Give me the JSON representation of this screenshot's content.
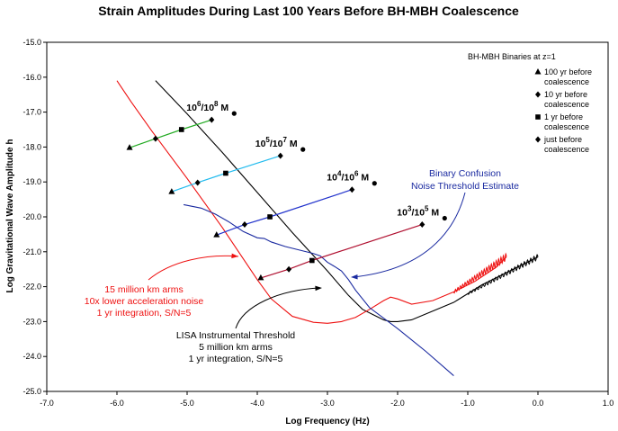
{
  "chart_data": {
    "type": "line",
    "title": "Strain Amplitudes During Last 100 Years Before BH-MBH Coalescence",
    "xlabel": "Log Frequency (Hz)",
    "ylabel": "Log Gravitational Wave Amplitude  h",
    "xlim": [
      -7.0,
      1.0
    ],
    "ylim": [
      -25.0,
      -15.0
    ],
    "x_ticks": [
      "-7.0",
      "-6.0",
      "-5.0",
      "-4.0",
      "-3.0",
      "-2.0",
      "-1.0",
      "0.0",
      "1.0"
    ],
    "y_ticks": [
      "-15.0",
      "-16.0",
      "-17.0",
      "-18.0",
      "-19.0",
      "-20.0",
      "-21.0",
      "-22.0",
      "-23.0",
      "-24.0",
      "-25.0"
    ],
    "legend_title": "BH-MBH Binaries at z=1",
    "legend_items": [
      {
        "marker": "triangle",
        "label": "100 yr before coalescence"
      },
      {
        "marker": "diamond",
        "label": "10 yr before coalescence"
      },
      {
        "marker": "square",
        "label": "1 yr before coalescence"
      },
      {
        "marker": "diamond",
        "label": "just before coalescence"
      }
    ],
    "binaries": [
      {
        "label": "10^6/10^8 M⊙",
        "base": "10",
        "exp1": "6",
        "exp2": "8",
        "unit": "M",
        "color": "#22aa22",
        "x": [
          -5.82,
          -5.45,
          -5.08,
          -4.65
        ],
        "y": [
          -18.02,
          -17.76,
          -17.5,
          -17.22
        ]
      },
      {
        "label": "10^5/10^7 M⊙",
        "base": "10",
        "exp1": "5",
        "exp2": "7",
        "unit": "M",
        "color": "#22bbee",
        "x": [
          -5.22,
          -4.85,
          -4.45,
          -3.67
        ],
        "y": [
          -19.28,
          -19.02,
          -18.75,
          -18.25
        ]
      },
      {
        "label": "10^4/10^6 M⊙",
        "base": "10",
        "exp1": "4",
        "exp2": "6",
        "unit": "M",
        "color": "#2233cc",
        "x": [
          -4.58,
          -4.18,
          -3.82,
          -2.65
        ],
        "y": [
          -20.52,
          -20.22,
          -20.0,
          -19.22
        ]
      },
      {
        "label": "10^3/10^5 M⊙",
        "base": "10",
        "exp1": "3",
        "exp2": "5",
        "unit": "M",
        "color": "#b01030",
        "x": [
          -3.95,
          -3.55,
          -3.22,
          -1.65
        ],
        "y": [
          -21.75,
          -21.5,
          -21.25,
          -20.22
        ]
      }
    ],
    "series": [
      {
        "name": "LISA Instrumental Threshold",
        "color": "#000000",
        "x": [
          -5.45,
          -5.0,
          -4.5,
          -4.0,
          -3.5,
          -3.0,
          -2.7,
          -2.5,
          -2.3,
          -2.2,
          -2.1,
          -2.0,
          -1.8,
          -1.5,
          -1.2,
          -1.0,
          -0.8,
          -0.5,
          -0.2,
          0.0
        ],
        "y": [
          -16.1,
          -17.05,
          -18.15,
          -19.3,
          -20.45,
          -21.55,
          -22.25,
          -22.65,
          -22.85,
          -22.95,
          -23.0,
          -23.0,
          -22.95,
          -22.7,
          -22.45,
          -22.2,
          -21.95,
          -21.65,
          -21.35,
          -21.15
        ]
      },
      {
        "name": "15 million km arms, 10x lower acceleration noise",
        "color": "#ee1111",
        "x": [
          -6.0,
          -5.8,
          -5.5,
          -5.0,
          -4.5,
          -4.2,
          -4.0,
          -3.8,
          -3.5,
          -3.2,
          -3.0,
          -2.8,
          -2.6,
          -2.4,
          -2.2,
          -2.1,
          -2.0,
          -1.8,
          -1.5,
          -1.2,
          -0.9,
          -0.6,
          -0.45
        ],
        "y": [
          -16.1,
          -16.7,
          -17.55,
          -18.9,
          -20.3,
          -21.2,
          -21.8,
          -22.35,
          -22.85,
          -23.02,
          -23.05,
          -23.0,
          -22.88,
          -22.65,
          -22.4,
          -22.3,
          -22.35,
          -22.5,
          -22.4,
          -22.15,
          -21.85,
          -21.45,
          -21.15
        ]
      },
      {
        "name": "Binary Confusion Noise Threshold Estimate",
        "color": "#1a2aa0",
        "x": [
          -5.05,
          -4.8,
          -4.6,
          -4.4,
          -4.2,
          -4.0,
          -3.9,
          -3.8,
          -3.6,
          -3.4,
          -3.2,
          -3.1,
          -3.0,
          -2.9,
          -2.8,
          -2.7,
          -2.6,
          -2.4,
          -2.0,
          -1.6,
          -1.2
        ],
        "y": [
          -19.65,
          -19.75,
          -19.92,
          -20.15,
          -20.42,
          -20.6,
          -20.62,
          -20.72,
          -20.85,
          -20.95,
          -21.05,
          -21.12,
          -21.3,
          -21.42,
          -21.55,
          -21.8,
          -22.1,
          -22.6,
          -23.2,
          -23.85,
          -24.55
        ]
      }
    ],
    "annotations": {
      "binary_confusion": [
        "Binary Confusion",
        "Noise Threshold Estimate"
      ],
      "red_curve": [
        "15 million km arms",
        "10x lower acceleration noise",
        "1 yr integration, S/N=5"
      ],
      "lisa": [
        "LISA Instrumental Threshold",
        "5 million km arms",
        "1 yr integration, S/N=5"
      ]
    },
    "colors": {
      "red_text": "#ee1111",
      "blue_text": "#1a2aa0",
      "black": "#000000"
    },
    "grid": false
  }
}
